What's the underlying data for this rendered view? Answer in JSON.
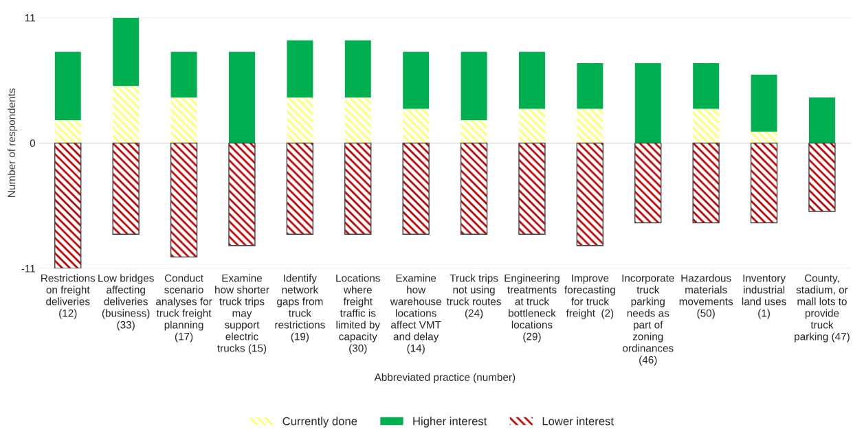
{
  "chart_data": {
    "type": "bar",
    "stacked": true,
    "xlabel": "Abbreviated practice (number)",
    "ylabel": "Number of respondents",
    "categories": [
      "Restrictions\non freight\ndeliveries\n(12)",
      "Low bridges\naffecting\ndeliveries\n(business)\n(33)",
      "Conduct\nscenario\nanalyses for\ntruck freight\nplanning\n(17)",
      "Examine\nhow shorter\ntruck trips\nmay\nsupport\nelectric\ntrucks (15)",
      "Identify\nnetwork\ngaps from\ntruck\nrestrictions\n(19)",
      "Locations\nwhere\nfreight\ntraffic is\nlimited by\ncapacity\n(30)",
      "Examine\nhow\nwarehouse\nlocations\naffect VMT\nand delay\n(14)",
      "Truck trips\nnot using\ntruck routes\n(24)",
      "Engineering\ntreatments\nat truck\nbottleneck\nlocations\n(29)",
      "Improve\nforecasting\nfor truck\nfreight  (2)",
      "Incorporate\ntruck\nparking\nneeds as\npart of\nzoning\nordinances\n(46)",
      "Hazardous\nmaterials\nmovements\n(50)",
      "Inventory\nindustrial\nland uses\n(1)",
      "County,\nstadium, or\nmall lots to\nprovide\ntruck\nparking (47)"
    ],
    "series": [
      {
        "name": "Currently done",
        "color": "#ffff66",
        "values": [
          2,
          5,
          4,
          0,
          4,
          4,
          3,
          2,
          3,
          3,
          0,
          3,
          1,
          0
        ]
      },
      {
        "name": "Higher interest",
        "color": "#00b050",
        "values": [
          6,
          6,
          4,
          8,
          5,
          5,
          5,
          6,
          5,
          4,
          7,
          4,
          5,
          4
        ]
      },
      {
        "name": "Lower interest",
        "color": "#c00000",
        "values": [
          -11,
          -8,
          -10,
          -9,
          -8,
          -8,
          -8,
          -8,
          -8,
          -9,
          -7,
          -7,
          -7,
          -6
        ]
      }
    ],
    "ylim": [
      -11,
      11
    ],
    "yticks": [
      -11,
      0,
      11
    ],
    "grid": "y",
    "legend": "bottom"
  }
}
